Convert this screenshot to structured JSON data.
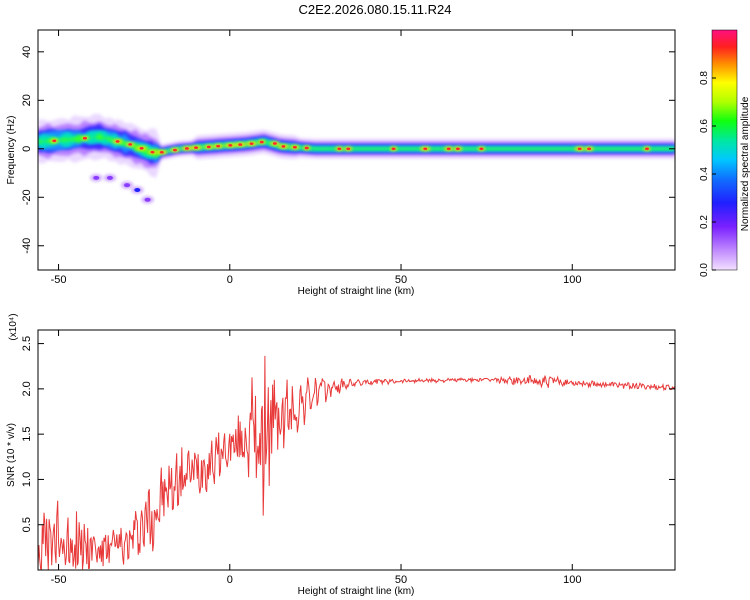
{
  "title": "C2E2.2026.080.15.11.R24",
  "chart_data": [
    {
      "type": "heatmap",
      "xlabel": "Height of straight line (km)",
      "ylabel": "Frequency (Hz)",
      "xlim": [
        -56,
        130
      ],
      "ylim": [
        -50,
        49
      ],
      "xticks": [
        -50,
        0,
        50,
        100
      ],
      "yticks": [
        -40,
        -20,
        0,
        20,
        40
      ],
      "colorbar": {
        "label": "Normalized spectral amplitude",
        "range": [
          0,
          1
        ],
        "ticks": [
          0.0,
          0.2,
          0.4,
          0.6,
          0.8
        ]
      },
      "band_center_hz": [
        {
          "x": -55,
          "f": 3
        },
        {
          "x": -45,
          "f": 4
        },
        {
          "x": -38,
          "f": 5
        },
        {
          "x": -30,
          "f": 2
        },
        {
          "x": -22,
          "f": -2
        },
        {
          "x": -15,
          "f": 0
        },
        {
          "x": -5,
          "f": 1
        },
        {
          "x": 5,
          "f": 2
        },
        {
          "x": 10,
          "f": 3
        },
        {
          "x": 15,
          "f": 1
        },
        {
          "x": 25,
          "f": 0
        },
        {
          "x": 130,
          "f": 0
        }
      ],
      "scatter_blobs": [
        {
          "x": -39,
          "f": -12
        },
        {
          "x": -35,
          "f": -12
        },
        {
          "x": -30,
          "f": -15
        },
        {
          "x": -27,
          "f": -17
        },
        {
          "x": -24,
          "f": -21
        }
      ]
    },
    {
      "type": "line",
      "xlabel": "Height of straight line (km)",
      "ylabel": "SNR (10 * v/v)",
      "y_multiplier": "(x10⁴)",
      "xlim": [
        -56,
        130
      ],
      "ylim": [
        0,
        2.65
      ],
      "xticks": [
        -50,
        0,
        50,
        100
      ],
      "yticks": [
        0.5,
        1.0,
        1.5,
        2.0,
        2.5
      ],
      "series": [
        {
          "name": "SNR",
          "color": "#e83a3a",
          "envelope": [
            {
              "x": -56,
              "y": 0.25,
              "amp": 0.35
            },
            {
              "x": -45,
              "y": 0.35,
              "amp": 0.4
            },
            {
              "x": -38,
              "y": 0.2,
              "amp": 0.2
            },
            {
              "x": -30,
              "y": 0.28,
              "amp": 0.22
            },
            {
              "x": -23,
              "y": 0.6,
              "amp": 0.4
            },
            {
              "x": -15,
              "y": 1.0,
              "amp": 0.3
            },
            {
              "x": -5,
              "y": 1.2,
              "amp": 0.25
            },
            {
              "x": 0,
              "y": 1.35,
              "amp": 0.2
            },
            {
              "x": 5,
              "y": 1.45,
              "amp": 0.3
            },
            {
              "x": 9,
              "y": 1.55,
              "amp": 0.9
            },
            {
              "x": 12,
              "y": 1.6,
              "amp": 0.5
            },
            {
              "x": 18,
              "y": 1.75,
              "amp": 0.3
            },
            {
              "x": 25,
              "y": 1.95,
              "amp": 0.15
            },
            {
              "x": 35,
              "y": 2.06,
              "amp": 0.04
            },
            {
              "x": 50,
              "y": 2.09,
              "amp": 0.02
            },
            {
              "x": 75,
              "y": 2.1,
              "amp": 0.02
            },
            {
              "x": 93,
              "y": 2.08,
              "amp": 0.06
            },
            {
              "x": 100,
              "y": 2.07,
              "amp": 0.03
            },
            {
              "x": 115,
              "y": 2.04,
              "amp": 0.03
            },
            {
              "x": 130,
              "y": 2.01,
              "amp": 0.03
            }
          ]
        }
      ]
    }
  ]
}
